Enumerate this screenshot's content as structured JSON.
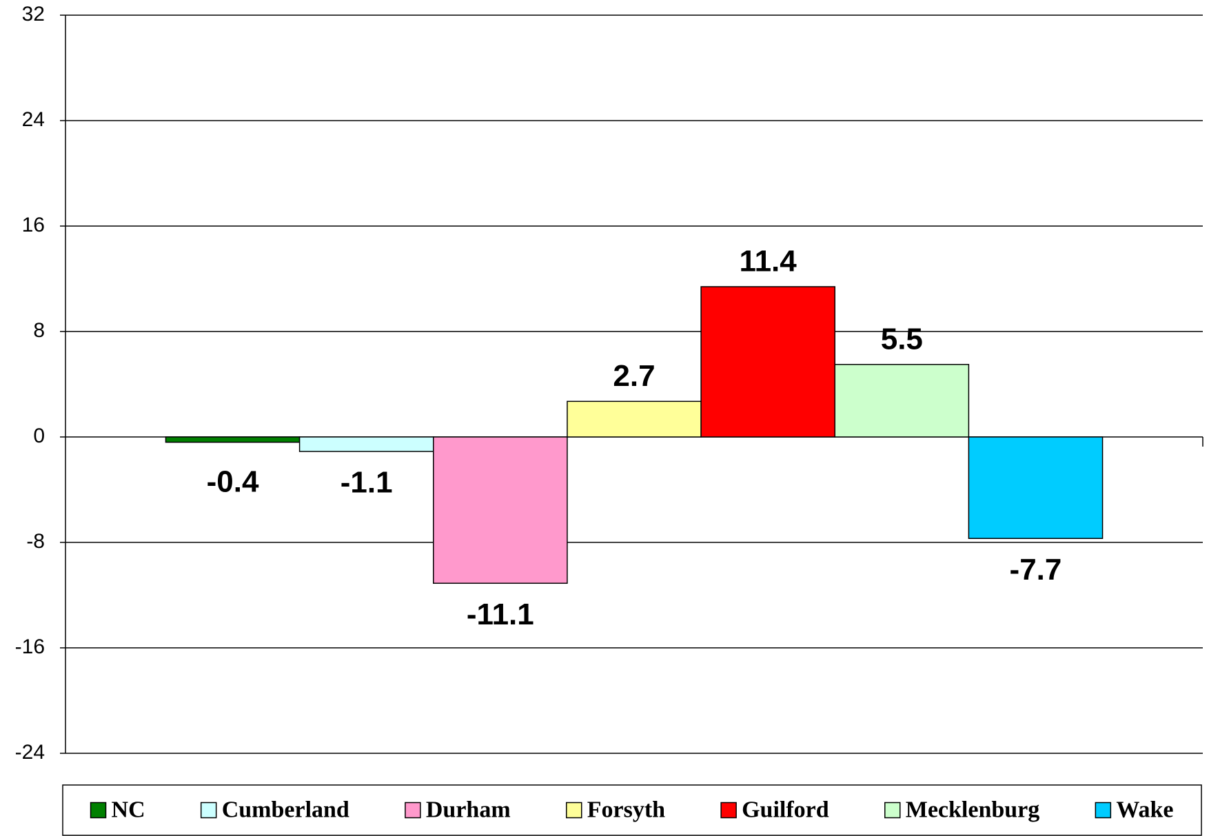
{
  "chart_data": {
    "type": "bar",
    "series": [
      {
        "name": "NC",
        "color": "#008000",
        "values": [
          -0.4
        ]
      },
      {
        "name": "Cumberland",
        "color": "#ccffff",
        "values": [
          -1.1
        ]
      },
      {
        "name": "Durham",
        "color": "#ff99cc",
        "values": [
          -11.1
        ]
      },
      {
        "name": "Forsyth",
        "color": "#ffff99",
        "values": [
          2.7
        ]
      },
      {
        "name": "Guilford",
        "color": "#ff0000",
        "values": [
          11.4
        ]
      },
      {
        "name": "Mecklenburg",
        "color": "#ccffcc",
        "values": [
          5.5
        ]
      },
      {
        "name": "Wake",
        "color": "#00ccff",
        "values": [
          -7.7
        ]
      }
    ],
    "ylim": [
      -24,
      32
    ],
    "yticks": [
      -24,
      -16,
      -8,
      0,
      8,
      16,
      24,
      32
    ],
    "grid": true,
    "legend": "bottom"
  }
}
